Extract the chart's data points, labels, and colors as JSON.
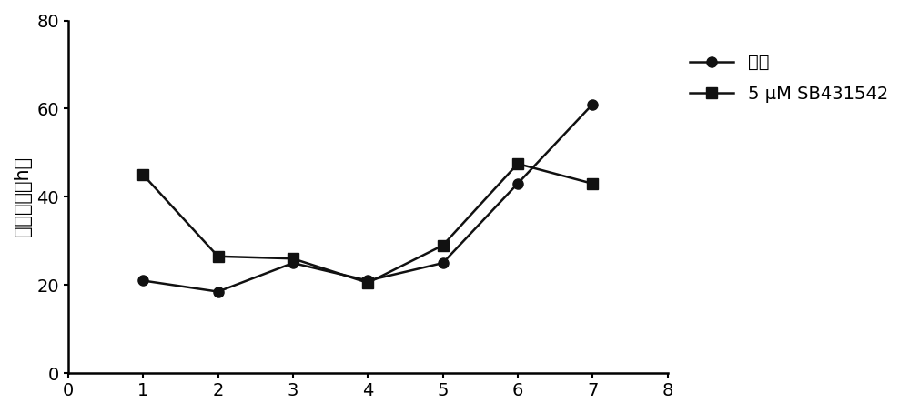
{
  "x": [
    1,
    2,
    3,
    4,
    5,
    6,
    7
  ],
  "y_control": [
    21,
    18.5,
    25,
    21,
    25,
    43,
    61
  ],
  "y_sb": [
    45,
    26.5,
    26,
    20.5,
    29,
    47.5,
    43
  ],
  "xlabel": "",
  "ylabel": "倍增时间（h）",
  "xlim": [
    0,
    8
  ],
  "ylim": [
    0,
    80
  ],
  "xticks": [
    0,
    1,
    2,
    3,
    4,
    5,
    6,
    7,
    8
  ],
  "yticks": [
    0,
    20,
    40,
    60,
    80
  ],
  "legend_control": "对照",
  "legend_sb": "5 μM SB431542",
  "line_color": "#111111",
  "marker_control": "o",
  "marker_sb": "s",
  "marker_size": 8,
  "line_width": 1.8,
  "background_color": "#ffffff",
  "ylabel_fontsize": 15,
  "tick_fontsize": 14,
  "legend_fontsize": 14
}
